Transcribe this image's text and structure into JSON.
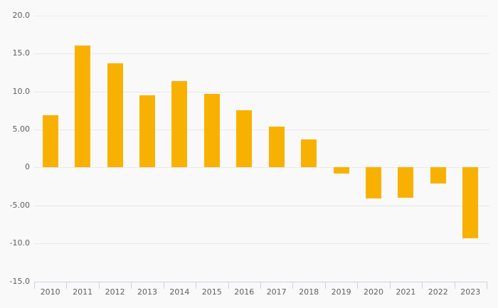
{
  "chart_data": {
    "type": "bar",
    "categories": [
      "2010",
      "2011",
      "2012",
      "2013",
      "2014",
      "2015",
      "2016",
      "2017",
      "2018",
      "2019",
      "2020",
      "2021",
      "2022",
      "2023"
    ],
    "values": [
      6.9,
      16.1,
      13.7,
      9.5,
      11.4,
      9.7,
      7.5,
      5.4,
      3.7,
      -0.8,
      -4.1,
      -4.0,
      -2.1,
      -9.3
    ],
    "title": "",
    "xlabel": "",
    "ylabel": "",
    "ylim": [
      -15,
      20
    ],
    "yticks": [
      20,
      15,
      10,
      5,
      0,
      -5,
      -10,
      -15
    ],
    "ytick_labels": [
      "20.0",
      "15.0",
      "10.0",
      "5.00",
      "0",
      "-5.00",
      "-10.0",
      "-15.0"
    ],
    "grid": true,
    "legend": false,
    "colors": {
      "bar": "#F9B101",
      "background": "#F9F9F9",
      "gridline": "#E9E9E9",
      "axis_line": "#CBD2E4",
      "tick_label": "#5E5E5E"
    }
  }
}
